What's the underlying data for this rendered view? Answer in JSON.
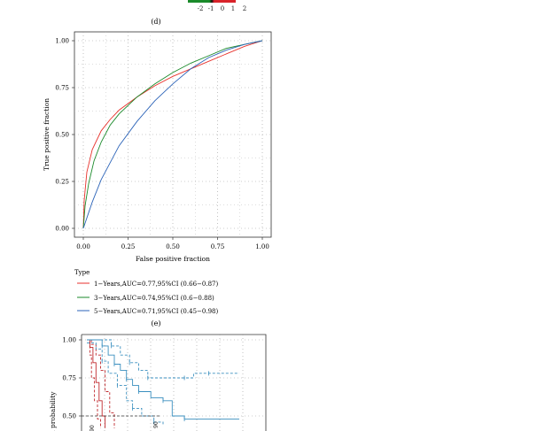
{
  "panel_labels": {
    "d": "(d)",
    "e": "(e)"
  },
  "heatmap_scale": {
    "ticks": [
      "-2",
      "-1",
      "0",
      "1",
      "2"
    ],
    "colors": {
      "low": "#1a8a2a",
      "mid": "#111111",
      "high": "#d9232a"
    }
  },
  "chart_data": [
    {
      "type": "line",
      "xlabel": "False positive fraction",
      "ylabel": "True positive fraction",
      "xlim": [
        0,
        1
      ],
      "ylim": [
        0,
        1
      ],
      "x_ticks": [
        "0.00",
        "0.25",
        "0.50",
        "0.75",
        "1.00"
      ],
      "y_ticks": [
        "0.00",
        "0.25",
        "0.50",
        "0.75",
        "1.00"
      ],
      "grid": true,
      "legend_title": "Type",
      "legend_position": "bottom-left",
      "series": [
        {
          "name": "1−Years,AUC=0.77,95%CI (0.66−0.87)",
          "color": "#e8322c",
          "x": [
            0,
            0.005,
            0.02,
            0.05,
            0.1,
            0.15,
            0.2,
            0.3,
            0.4,
            0.5,
            0.6,
            0.7,
            0.8,
            0.9,
            1.0
          ],
          "y": [
            0,
            0.15,
            0.3,
            0.42,
            0.52,
            0.58,
            0.63,
            0.7,
            0.76,
            0.81,
            0.85,
            0.89,
            0.93,
            0.97,
            1.0
          ]
        },
        {
          "name": "3−Years,AUC=0.74,95%CI (0.6−0.88)",
          "color": "#1a8a2a",
          "x": [
            0,
            0.01,
            0.03,
            0.06,
            0.1,
            0.15,
            0.2,
            0.3,
            0.4,
            0.5,
            0.6,
            0.7,
            0.8,
            0.9,
            1.0
          ],
          "y": [
            0,
            0.12,
            0.24,
            0.36,
            0.46,
            0.55,
            0.61,
            0.7,
            0.77,
            0.83,
            0.88,
            0.92,
            0.96,
            0.98,
            1.0
          ]
        },
        {
          "name": "5−Years,AUC=0.71,95%CI (0.45−0.98)",
          "color": "#2b63b8",
          "x": [
            0,
            0.05,
            0.1,
            0.2,
            0.3,
            0.4,
            0.5,
            0.6,
            0.7,
            0.8,
            0.9,
            1.0
          ],
          "y": [
            0,
            0.14,
            0.26,
            0.44,
            0.57,
            0.68,
            0.77,
            0.85,
            0.91,
            0.95,
            0.98,
            1.0
          ]
        }
      ]
    },
    {
      "type": "line",
      "ylabel": "val probability",
      "xlim": [
        0,
        1
      ],
      "ylim": [
        0.4,
        1.02
      ],
      "y_ticks": [
        "1.00",
        "0.75",
        "0.50"
      ],
      "grid": true,
      "series": [
        {
          "color": "#c0282d",
          "x": [
            0,
            0.02,
            0.04,
            0.06,
            0.08,
            0.1,
            0.12
          ],
          "y": [
            1.0,
            0.95,
            0.85,
            0.72,
            0.6,
            0.5,
            0.42
          ]
        },
        {
          "color": "#c0282d",
          "x": [
            0,
            0.03,
            0.06,
            0.09,
            0.12,
            0.15,
            0.18
          ],
          "y": [
            1.0,
            0.97,
            0.9,
            0.8,
            0.66,
            0.52,
            0.42
          ]
        },
        {
          "color": "#c0282d",
          "x": [
            0,
            0.02,
            0.03,
            0.05,
            0.07,
            0.09
          ],
          "y": [
            1.0,
            0.9,
            0.75,
            0.6,
            0.48,
            0.42
          ]
        },
        {
          "color": "#3a8fbf",
          "x": [
            0,
            0.06,
            0.1,
            0.14,
            0.18,
            0.22,
            0.26,
            0.3,
            0.34,
            0.42,
            0.5,
            0.56,
            0.64,
            1.0
          ],
          "y": [
            1.0,
            1.0,
            0.96,
            0.9,
            0.84,
            0.8,
            0.74,
            0.7,
            0.66,
            0.62,
            0.6,
            0.5,
            0.48,
            0.48
          ]
        },
        {
          "color": "#3a8fbf",
          "x": [
            0,
            0.1,
            0.16,
            0.22,
            0.28,
            0.34,
            0.4,
            0.5,
            0.64,
            0.7,
            0.8,
            1.0
          ],
          "y": [
            1.0,
            1.0,
            0.96,
            0.9,
            0.85,
            0.8,
            0.75,
            0.75,
            0.75,
            0.78,
            0.78,
            0.78
          ]
        },
        {
          "color": "#3a8fbf",
          "x": [
            0,
            0.06,
            0.1,
            0.14,
            0.2,
            0.26,
            0.3,
            0.36,
            0.44,
            0.5
          ],
          "y": [
            0.98,
            0.94,
            0.86,
            0.78,
            0.7,
            0.6,
            0.55,
            0.5,
            0.46,
            0.44
          ]
        }
      ],
      "annotations": [
        "90",
        "90"
      ]
    }
  ]
}
